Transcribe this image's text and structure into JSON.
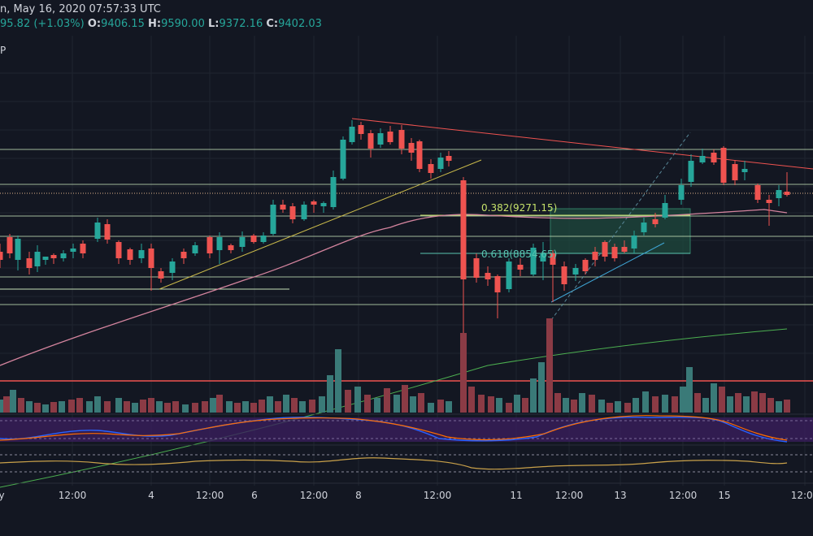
{
  "header": {
    "line1": "n, May 16, 2020 07:57:33 UTC",
    "change": "95.82 (+1.03%)",
    "o_label": "O:",
    "o_value": "9406.15",
    "h_label": "H:",
    "h_value": "9590.00",
    "l_label": "L:",
    "l_value": "9372.16",
    "c_label": "C:",
    "c_value": "9402.03"
  },
  "chart_flag": "P",
  "time_axis": {
    "labels": [
      "y",
      "12:00",
      "4",
      "12:00",
      "6",
      "12:00",
      "8",
      "12:00",
      "11",
      "12:00",
      "13",
      "12:00",
      "15",
      "12:00"
    ]
  },
  "fib_levels": [
    {
      "label": "0.382(9271.15)"
    },
    {
      "label": "0.618(8854.65)"
    }
  ],
  "colors": {
    "background": "#131722",
    "up": "#26a69a",
    "down": "#ef5350",
    "up_volume": "#3a7a78",
    "down_volume": "#8b3b45",
    "level_line": "#c6e2b8",
    "resistance": "#ef5350",
    "ma_pink": "#d4849e",
    "ma_green": "#4caf50",
    "trend_yellow": "#c9b94a",
    "trend_blue": "#3fa6d6",
    "fib_box": "#1f4a3e",
    "stoch_band": "#3a1e5c",
    "stoch_k": "#2962ff",
    "stoch_d": "#ff6d00",
    "osc_line": "#c9a14a"
  }
}
